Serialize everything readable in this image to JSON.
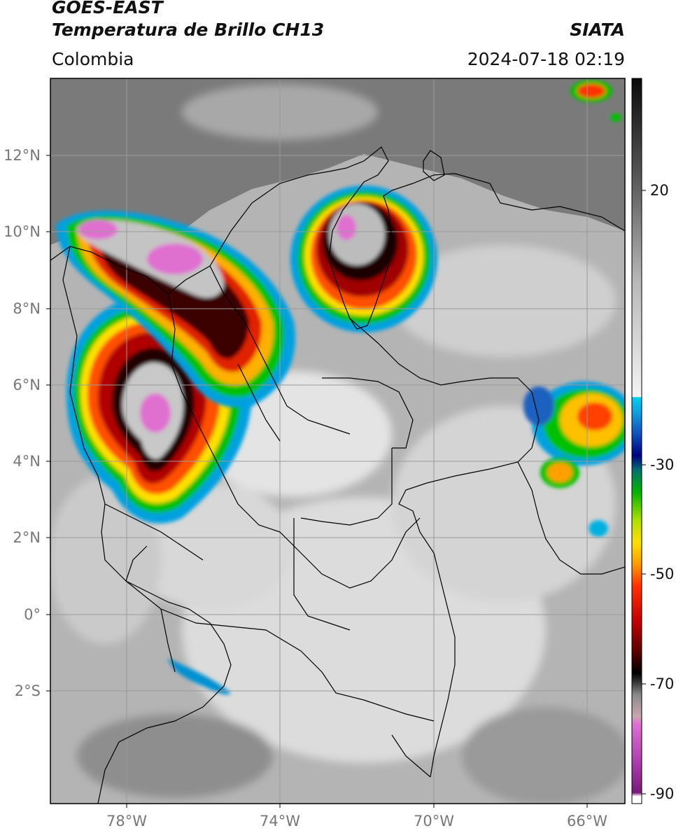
{
  "header": {
    "satellite": "GOES-EAST",
    "product": "Temperatura de Brillo CH13",
    "brand": "SIATA",
    "region": "Colombia",
    "timestamp": "2024-07-18 02:19"
  },
  "map": {
    "lon_range": [
      -80,
      -65
    ],
    "lat_range": [
      -5,
      14
    ],
    "lon_ticks": [
      {
        "value": -78,
        "label": "78°W"
      },
      {
        "value": -74,
        "label": "74°W"
      },
      {
        "value": -70,
        "label": "70°W"
      },
      {
        "value": -66,
        "label": "66°W"
      }
    ],
    "lat_ticks": [
      {
        "value": 12,
        "label": "12°N"
      },
      {
        "value": 10,
        "label": "10°N"
      },
      {
        "value": 8,
        "label": "8°N"
      },
      {
        "value": 6,
        "label": "6°N"
      },
      {
        "value": 4,
        "label": "4°N"
      },
      {
        "value": 2,
        "label": "2°N"
      },
      {
        "value": 0,
        "label": "0°"
      },
      {
        "value": -2,
        "label": "2°S"
      }
    ]
  },
  "colorbar": {
    "range": [
      -92,
      37
    ],
    "ticks": [
      {
        "value": 20,
        "label": "20"
      },
      {
        "value": -30,
        "label": "-30"
      },
      {
        "value": -50,
        "label": "-50"
      },
      {
        "value": -70,
        "label": "-70"
      },
      {
        "value": -90,
        "label": "-90"
      }
    ]
  },
  "colors": {
    "ocean": "#7a7a7a",
    "land": "#b4b4b4",
    "border": "#000000",
    "grid": "#9a9a9a"
  }
}
